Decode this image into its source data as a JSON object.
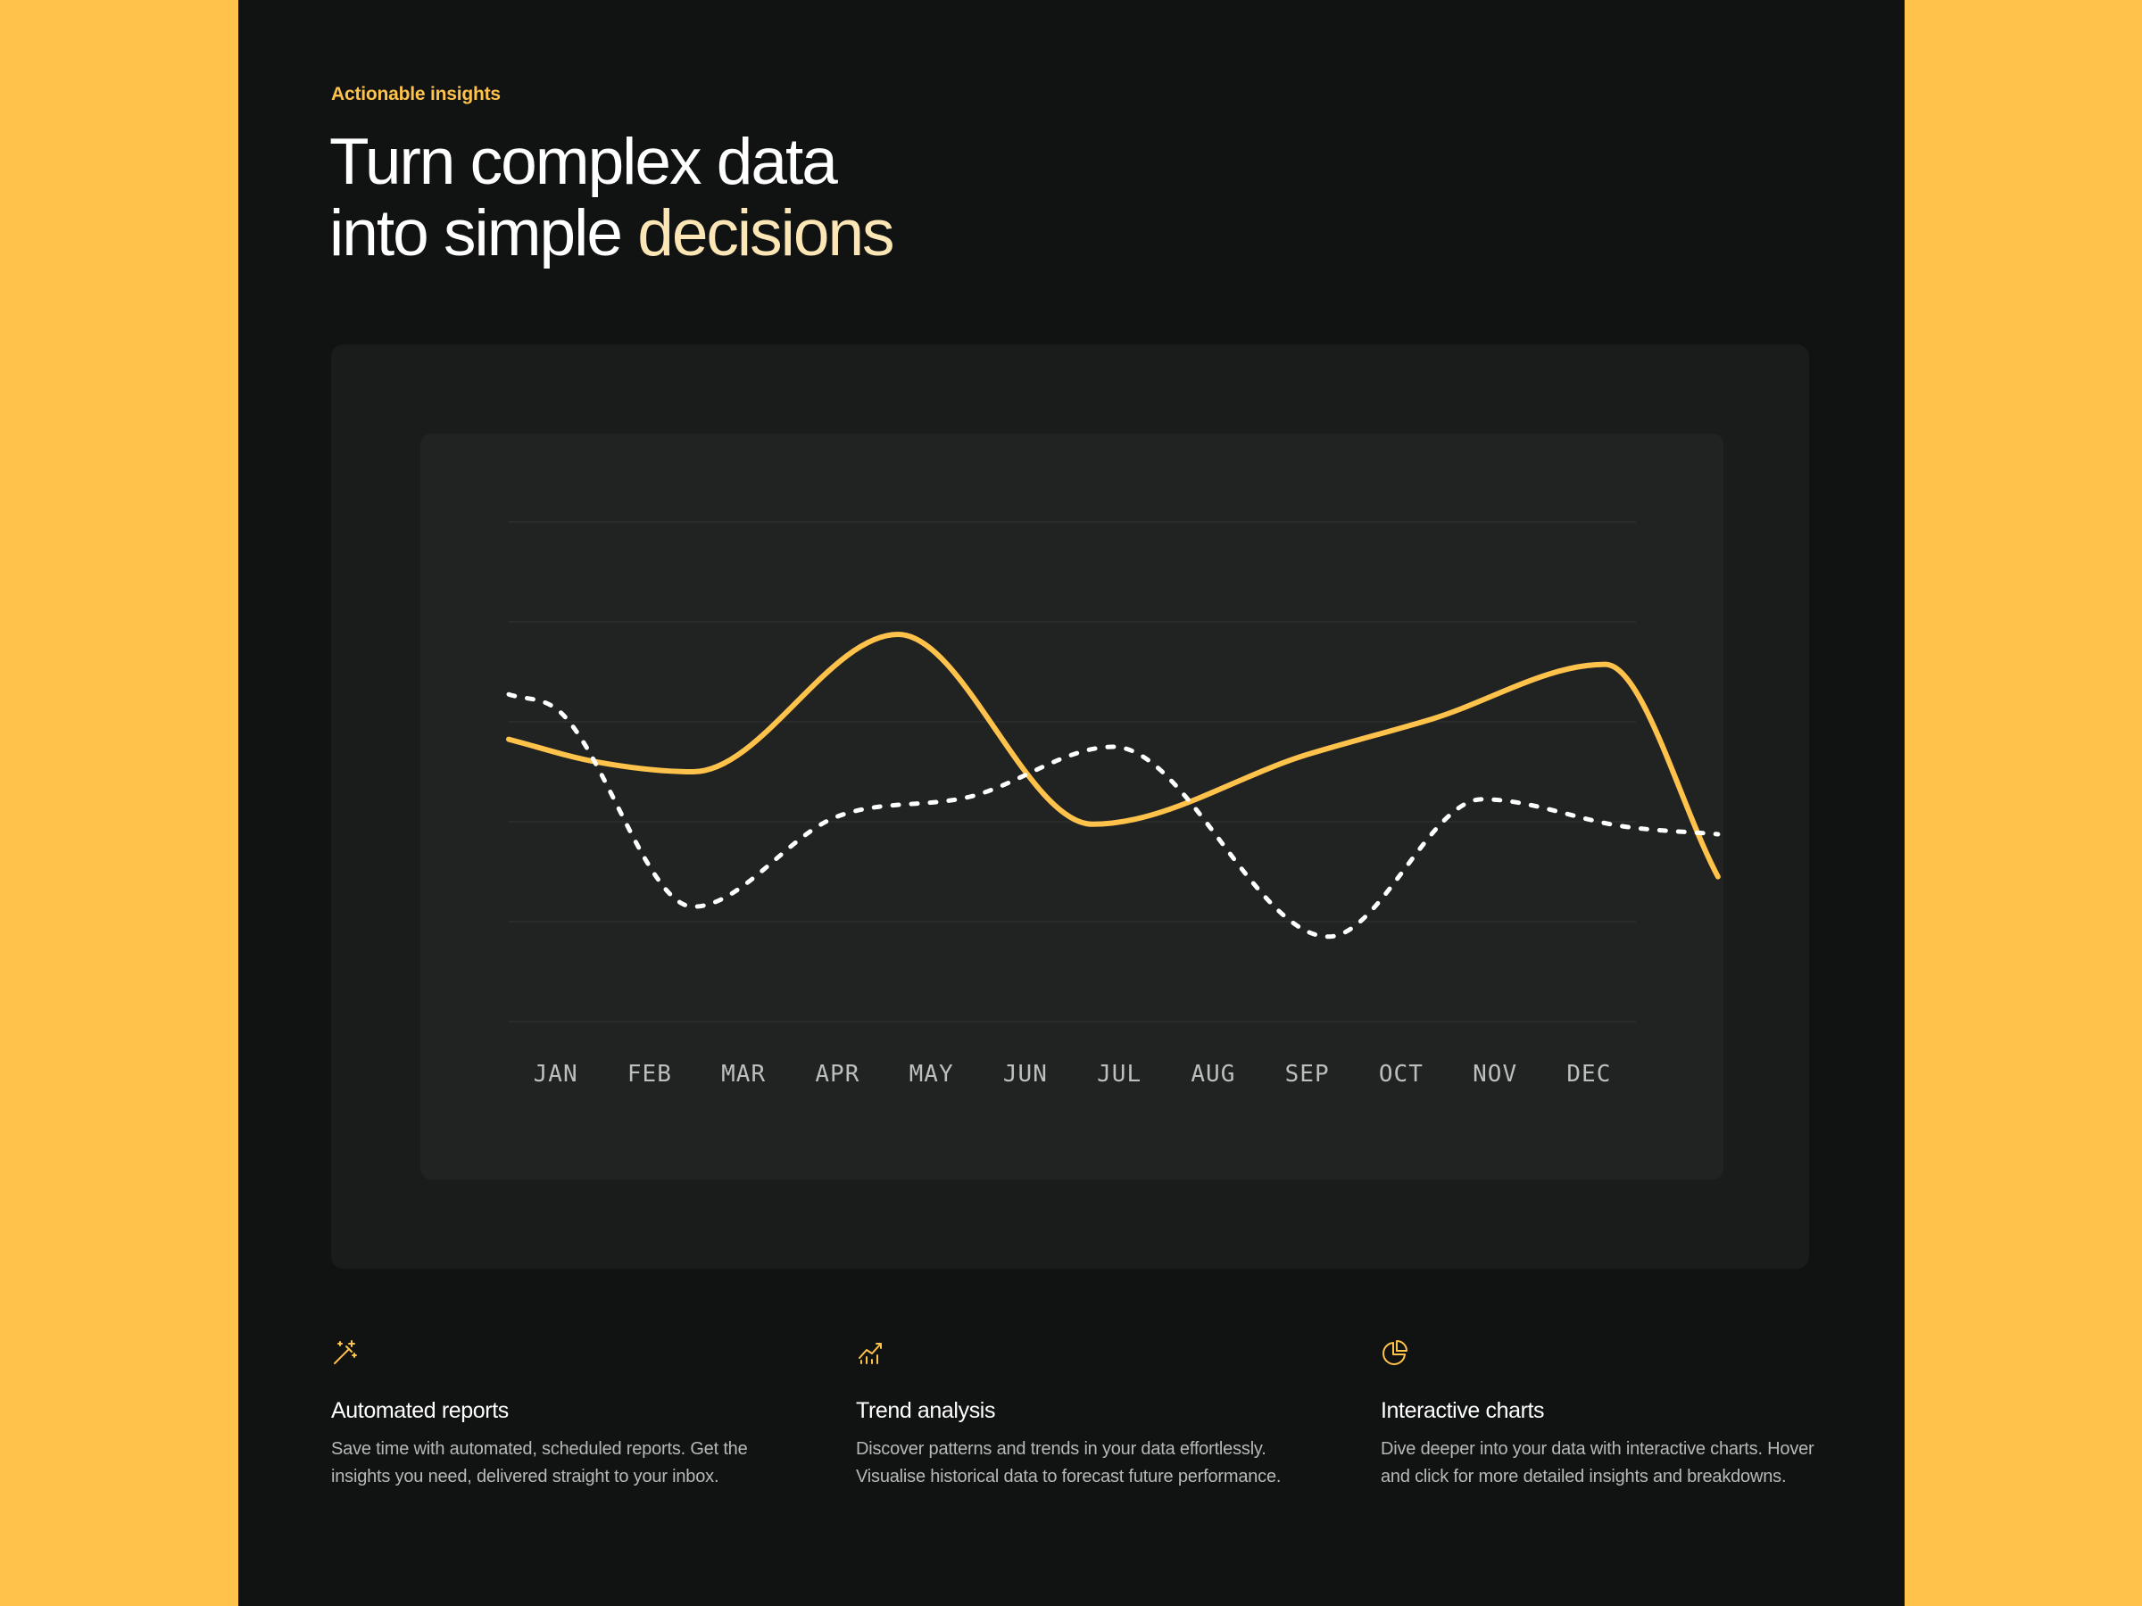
{
  "hero": {
    "eyebrow": "Actionable insights",
    "title_line1": "Turn complex data",
    "title_line2_prefix": "into simple ",
    "title_line2_accent": "decisions"
  },
  "colors": {
    "background": "#FFC24B",
    "panel": "#111212",
    "accent": "#FFC24B",
    "accent_light": "#FDE6B6",
    "series_dashed": "#FFFFFF"
  },
  "chart_data": {
    "type": "line",
    "categories": [
      "JAN",
      "FEB",
      "MAR",
      "APR",
      "MAY",
      "JUN",
      "JUL",
      "AUG",
      "SEP",
      "OCT",
      "NOV",
      "DEC"
    ],
    "ylim": [
      0,
      100
    ],
    "grid": true,
    "series": [
      {
        "style": "solid",
        "color": "#FFC24B",
        "x": [
          0,
          0.85,
          1.8,
          3.8,
          5.7,
          7.8,
          9.0,
          10.7,
          11.8
        ],
        "values": [
          56.5,
          52.0,
          50.0,
          77.5,
          39.5,
          53.5,
          60.5,
          71.5,
          29.0
        ]
      },
      {
        "style": "dashed",
        "color": "#FFFFFF",
        "x": [
          0,
          0.5,
          1.8,
          3.2,
          4.5,
          5.9,
          8.0,
          9.5,
          10.9,
          11.8
        ],
        "values": [
          65.5,
          62.0,
          23.0,
          41.0,
          45.0,
          55.0,
          17.0,
          44.5,
          39.0,
          37.5
        ]
      }
    ]
  },
  "features": [
    {
      "icon": "magic-wand-icon",
      "title": "Automated reports",
      "desc": "Save time with automated, scheduled reports. Get the insights you need, delivered straight to your inbox."
    },
    {
      "icon": "trend-chart-icon",
      "title": "Trend analysis",
      "desc": "Discover patterns and trends in your data effortlessly. Visualise historical data to forecast future performance."
    },
    {
      "icon": "pie-chart-icon",
      "title": "Interactive charts",
      "desc": "Dive deeper into your data with interactive charts. Hover and click for more detailed insights and breakdowns."
    }
  ]
}
